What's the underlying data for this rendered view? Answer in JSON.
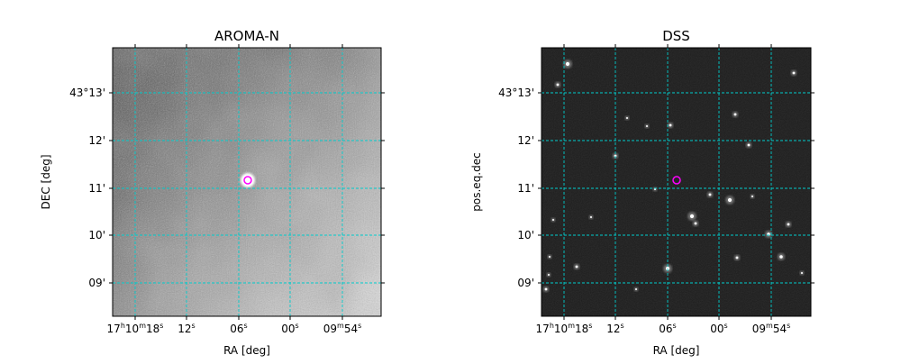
{
  "panels": [
    {
      "title": "AROMA-N",
      "x_label": "RA [deg]",
      "y_label": "DEC [deg]",
      "x_ticks": [
        {
          "parts": [
            {
              "text": "17",
              "sup": false
            },
            {
              "text": "h",
              "sup": true
            },
            {
              "text": "10",
              "sup": false
            },
            {
              "text": "m",
              "sup": true
            },
            {
              "text": "18",
              "sup": false
            },
            {
              "text": "s",
              "sup": true
            }
          ]
        },
        {
          "parts": [
            {
              "text": "12",
              "sup": false
            },
            {
              "text": "s",
              "sup": true
            }
          ]
        },
        {
          "parts": [
            {
              "text": "06",
              "sup": false
            },
            {
              "text": "s",
              "sup": true
            }
          ]
        },
        {
          "parts": [
            {
              "text": "00",
              "sup": false
            },
            {
              "text": "s",
              "sup": true
            }
          ]
        },
        {
          "parts": [
            {
              "text": "09",
              "sup": false
            },
            {
              "text": "m",
              "sup": true
            },
            {
              "text": "54",
              "sup": false
            },
            {
              "text": "s",
              "sup": true
            }
          ]
        }
      ],
      "y_ticks": [
        "43°13'",
        "12'",
        "11'",
        "10'",
        "09'"
      ]
    },
    {
      "title": "DSS",
      "x_label": "RA [deg]",
      "y_label": "pos.eq.dec",
      "x_ticks": [
        {
          "parts": [
            {
              "text": "17",
              "sup": false
            },
            {
              "text": "h",
              "sup": true
            },
            {
              "text": "10",
              "sup": false
            },
            {
              "text": "m",
              "sup": true
            },
            {
              "text": "18",
              "sup": false
            },
            {
              "text": "s",
              "sup": true
            }
          ]
        },
        {
          "parts": [
            {
              "text": "12",
              "sup": false
            },
            {
              "text": "s",
              "sup": true
            }
          ]
        },
        {
          "parts": [
            {
              "text": "06",
              "sup": false
            },
            {
              "text": "s",
              "sup": true
            }
          ]
        },
        {
          "parts": [
            {
              "text": "00",
              "sup": false
            },
            {
              "text": "s",
              "sup": true
            }
          ]
        },
        {
          "parts": [
            {
              "text": "09",
              "sup": false
            },
            {
              "text": "m",
              "sup": true
            },
            {
              "text": "54",
              "sup": false
            },
            {
              "text": "s",
              "sup": true
            }
          ]
        }
      ],
      "y_ticks": [
        "43°13'",
        "12'",
        "11'",
        "10'",
        "09'"
      ]
    }
  ]
}
